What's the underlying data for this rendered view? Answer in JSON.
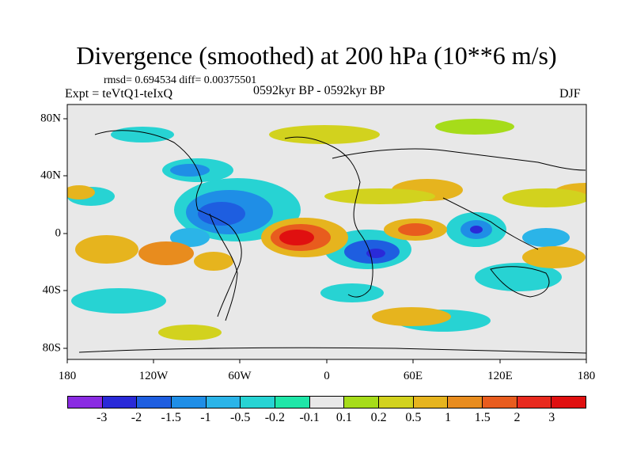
{
  "title": "Divergence (smoothed) at 200 hPa (10**6 m/s)",
  "stats": "rmsd= 0.694534 diff= 0.00375501",
  "experiment": "Expt = teVtQ1-teIxQ",
  "period": "0592kyr BP - 0592kyr BP",
  "season": "DJF",
  "x_ticks": [
    "180",
    "120W",
    "60W",
    "0",
    "60E",
    "120E",
    "180"
  ],
  "y_ticks": [
    "80N",
    "40N",
    "0",
    "40S",
    "80S"
  ],
  "colorbar": {
    "labels": [
      "-3",
      "-2",
      "-1.5",
      "-1",
      "-0.5",
      "-0.2",
      "-0.1",
      "0.1",
      "0.2",
      "0.5",
      "1",
      "1.5",
      "2",
      "3"
    ],
    "colors": [
      "#8a2be2",
      "#2a2ad8",
      "#1e5ee0",
      "#1f8ee6",
      "#2bb4e8",
      "#27d3d3",
      "#1fe6a8",
      "#e8e8e8",
      "#a6dc1a",
      "#d2d21e",
      "#e6b41e",
      "#e88c1e",
      "#e85c1e",
      "#e82a1e",
      "#e01010"
    ]
  },
  "background_color": "#e8e8e8"
}
